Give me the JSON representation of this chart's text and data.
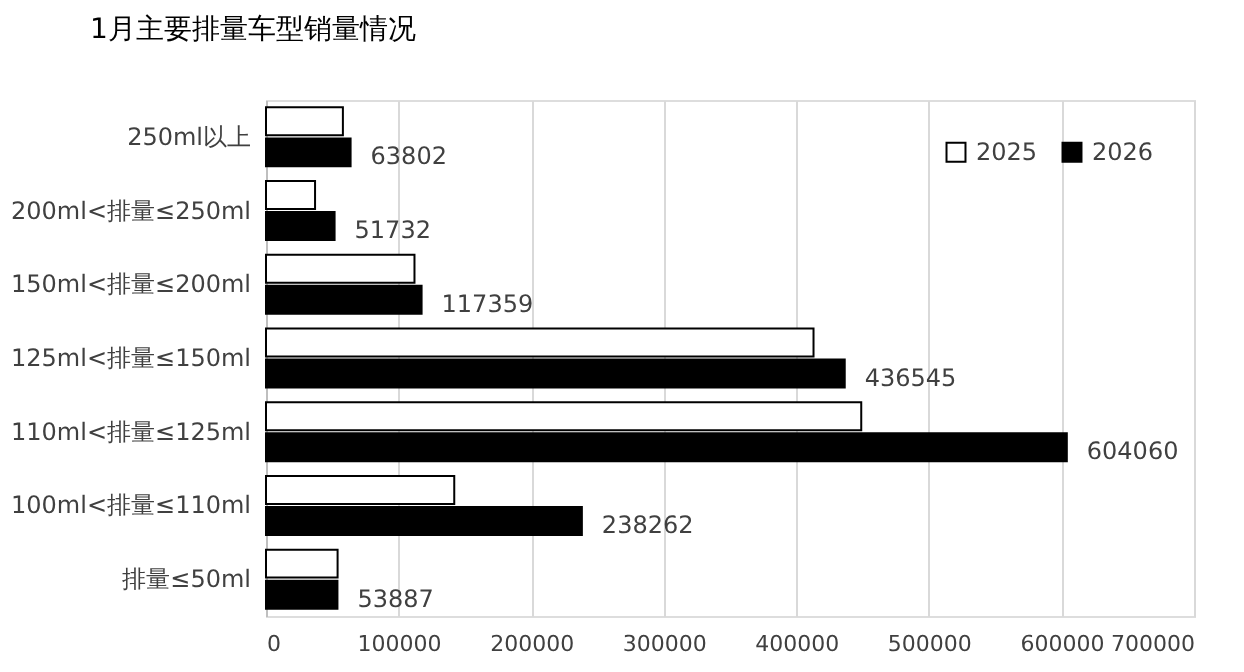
{
  "chart_data": {
    "type": "bar",
    "orientation": "horizontal",
    "title": "1月主要排量车型销量情况",
    "categories": [
      "250ml以上",
      "200ml<排量≤250ml",
      "150ml<排量≤200ml",
      "125ml<排量≤150ml",
      "110ml<排量≤125ml",
      "100ml<排量≤110ml",
      "排量≤50ml"
    ],
    "series": [
      {
        "name": "2025",
        "color": "#ffffff",
        "values": [
          58000,
          37000,
          112000,
          413000,
          449000,
          142000,
          54000
        ]
      },
      {
        "name": "2026",
        "color": "#000000",
        "values": [
          63802,
          51732,
          117359,
          436545,
          604060,
          238262,
          53887
        ],
        "value_labels": [
          "63802",
          "51732",
          "117359",
          "436545",
          "604060",
          "238262",
          "53887"
        ]
      }
    ],
    "xlim": [
      0,
      700000
    ],
    "xticks": [
      0,
      100000,
      200000,
      300000,
      400000,
      500000,
      600000,
      700000
    ],
    "grid": "x",
    "legend": "top right"
  }
}
